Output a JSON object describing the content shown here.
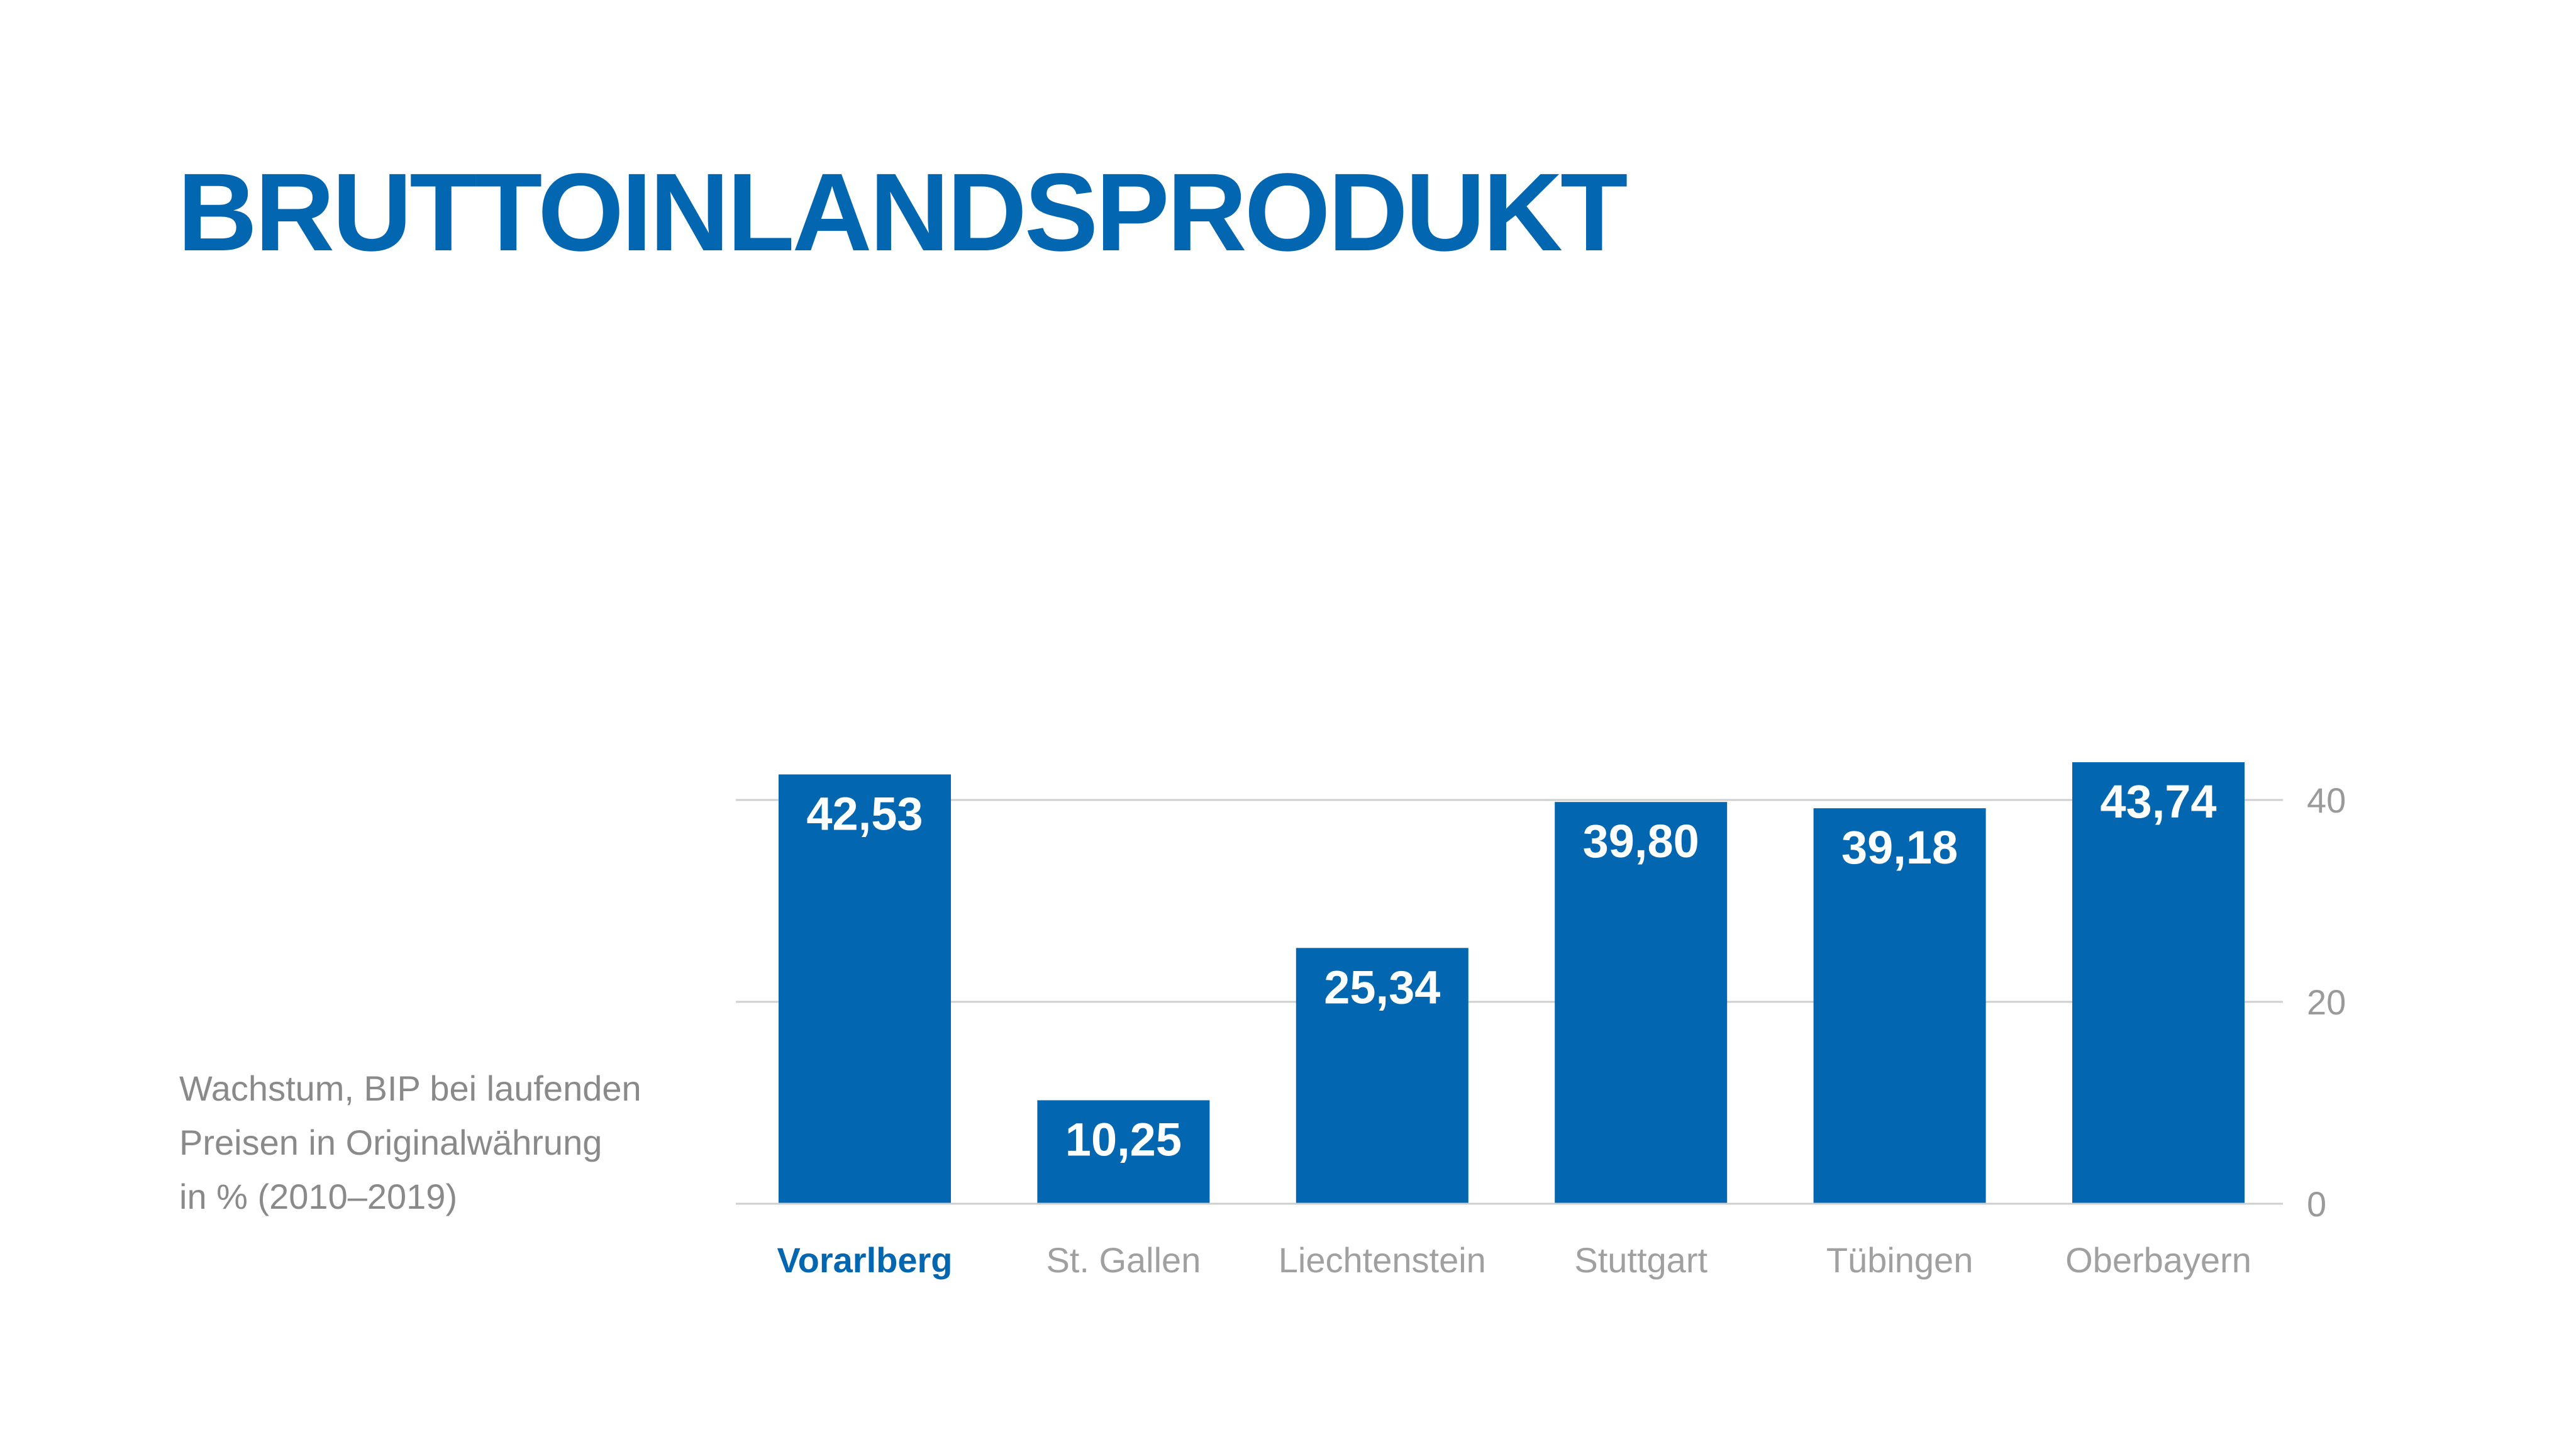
{
  "title": "BRUTTOINLANDSPRODUKT",
  "description": {
    "line1": "Wachstum, BIP bei laufenden",
    "line2": "Preisen in Originalwährung",
    "line3": "in % (2010–2019)"
  },
  "chart_data": {
    "type": "bar",
    "categories": [
      "Vorarlberg",
      "St. Gallen",
      "Liechtenstein",
      "Stuttgart",
      "Tübingen",
      "Oberbayern"
    ],
    "values": [
      42.53,
      10.25,
      25.34,
      39.8,
      39.18,
      43.74
    ],
    "value_labels": [
      "42,53",
      "10,25",
      "25,34",
      "39,80",
      "39,18",
      "43,74"
    ],
    "highlight_category": "Vorarlberg",
    "yticks": [
      0,
      20,
      40
    ],
    "ylim": [
      0,
      40
    ],
    "y_axis_side": "right",
    "grid": true,
    "bar_color": "#0266b1",
    "title_color": "#0266b1",
    "grid_color": "#cfcfcf"
  }
}
